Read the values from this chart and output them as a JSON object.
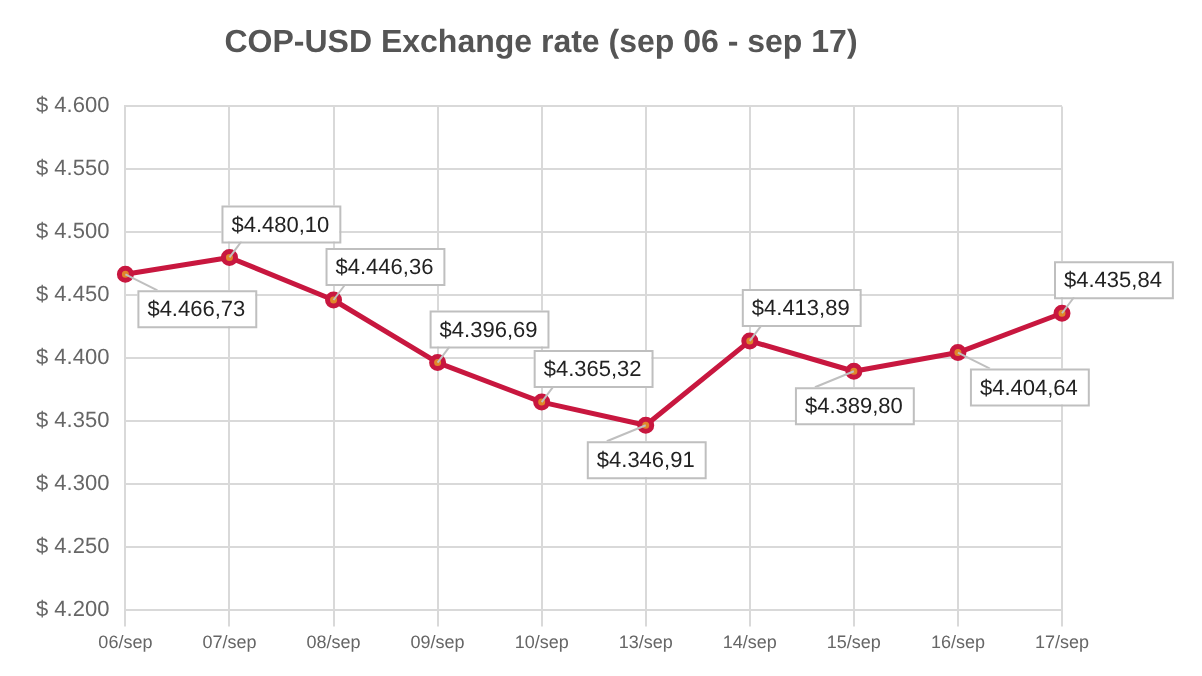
{
  "chart_data": {
    "type": "line",
    "title": "COP-USD Exchange rate (sep 06 - sep 17)",
    "categories": [
      "06/sep",
      "07/sep",
      "08/sep",
      "09/sep",
      "10/sep",
      "13/sep",
      "14/sep",
      "15/sep",
      "16/sep",
      "17/sep"
    ],
    "series": [
      {
        "color": "#c8173f",
        "values": [
          4466.73,
          4480.1,
          4446.36,
          4396.69,
          4365.32,
          4346.91,
          4413.89,
          4389.8,
          4404.64,
          4435.84
        ],
        "value_labels": [
          "$4.466,73",
          "$4.480,10",
          "$4.446,36",
          "$4.396,69",
          "$4.365,32",
          "$4.346,91",
          "$4.413,89",
          "$4.389,80",
          "$4.404,64",
          "$4.435,84"
        ]
      }
    ],
    "ylim": [
      4200,
      4600
    ],
    "yticks": [
      {
        "value": 4200,
        "label": "$ 4.200"
      },
      {
        "value": 4250,
        "label": "$ 4.250"
      },
      {
        "value": 4300,
        "label": "$ 4.300"
      },
      {
        "value": 4350,
        "label": "$ 4.350"
      },
      {
        "value": 4400,
        "label": "$ 4.400"
      },
      {
        "value": 4450,
        "label": "$ 4.450"
      },
      {
        "value": 4500,
        "label": "$ 4.500"
      },
      {
        "value": 4550,
        "label": "$ 4.550"
      },
      {
        "value": 4600,
        "label": "$ 4.600"
      }
    ],
    "grid": true,
    "legend": false,
    "marker": "circle",
    "line_style": "solid"
  }
}
